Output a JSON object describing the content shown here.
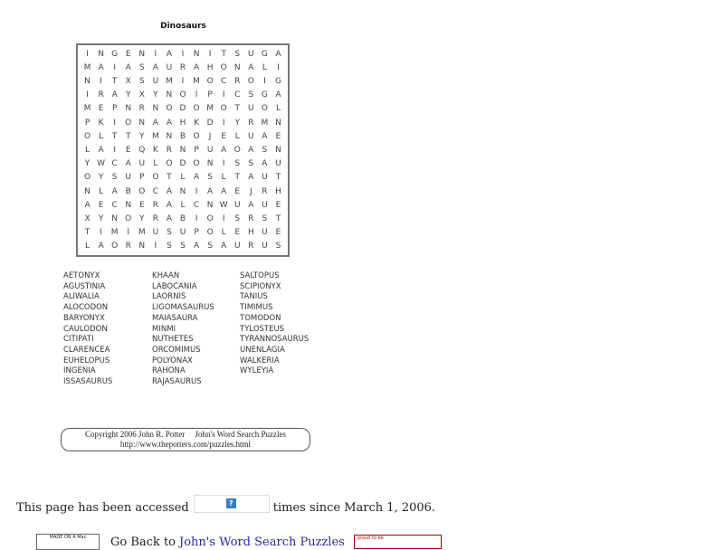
{
  "title": "Dinosaurs",
  "grid": [
    "INGENIAINITSUGA",
    "MAIASAURAHONALI",
    "NITXSUMIMOCROIG",
    "IRAYXYNOIPICSGA",
    "MEPNRNODOMOTUOL",
    "PKIONAAHKDIYRMN",
    "OLTTYMNBOJELUAE",
    "LAIEQKRNPUAOASN",
    "YWCAULODONISSAU",
    "OYSUPOTLASLTAUT",
    "NLABOCANIAAEJRH",
    "AECNERALCNWUAUE",
    "XYNOYRABIOISRST",
    "TIMIMUSUPOLEHUE",
    "LAORNISSASAURUS"
  ],
  "words": [
    [
      "AETONYX",
      "AGUSTINIA",
      "ALIWALIA",
      "ALOCODON",
      "BARYONYX",
      "CAULODON",
      "CITIPATI",
      "CLARENCEA",
      "EUHELOPUS",
      "INGENIA",
      "ISSASAURUS"
    ],
    [
      "KHAAN",
      "LABOCANIA",
      "LAORNIS",
      "LIGOMASAURUS",
      "MAIASAURA",
      "MINMI",
      "NUTHETES",
      "ORCOMIMUS",
      "POLYONAX",
      "RAHONA",
      "RAJASAURUS"
    ],
    [
      "SALTOPUS",
      "SCIPIONYX",
      "TANIUS",
      "TIMIMUS",
      "TOMODON",
      "TYLOSTEUS",
      "TYRANNOSAURUS",
      "UNENLAGIA",
      "WALKERIA",
      "WYLEYIA"
    ]
  ],
  "copyright": {
    "line1": "Copyright 2006 John R. Potter     John's Word Search Puzzles",
    "line2": "http://www.thepotters.com/puzzles.html"
  },
  "access": {
    "before": "This page has been accessed",
    "counter_icon": "?",
    "after": "times since March 1, 2006."
  },
  "footer": {
    "badge": "MADE ON A Mac",
    "go_back": "Go Back to",
    "link": "John's Word Search Puzzles",
    "proud": "proud to be"
  }
}
